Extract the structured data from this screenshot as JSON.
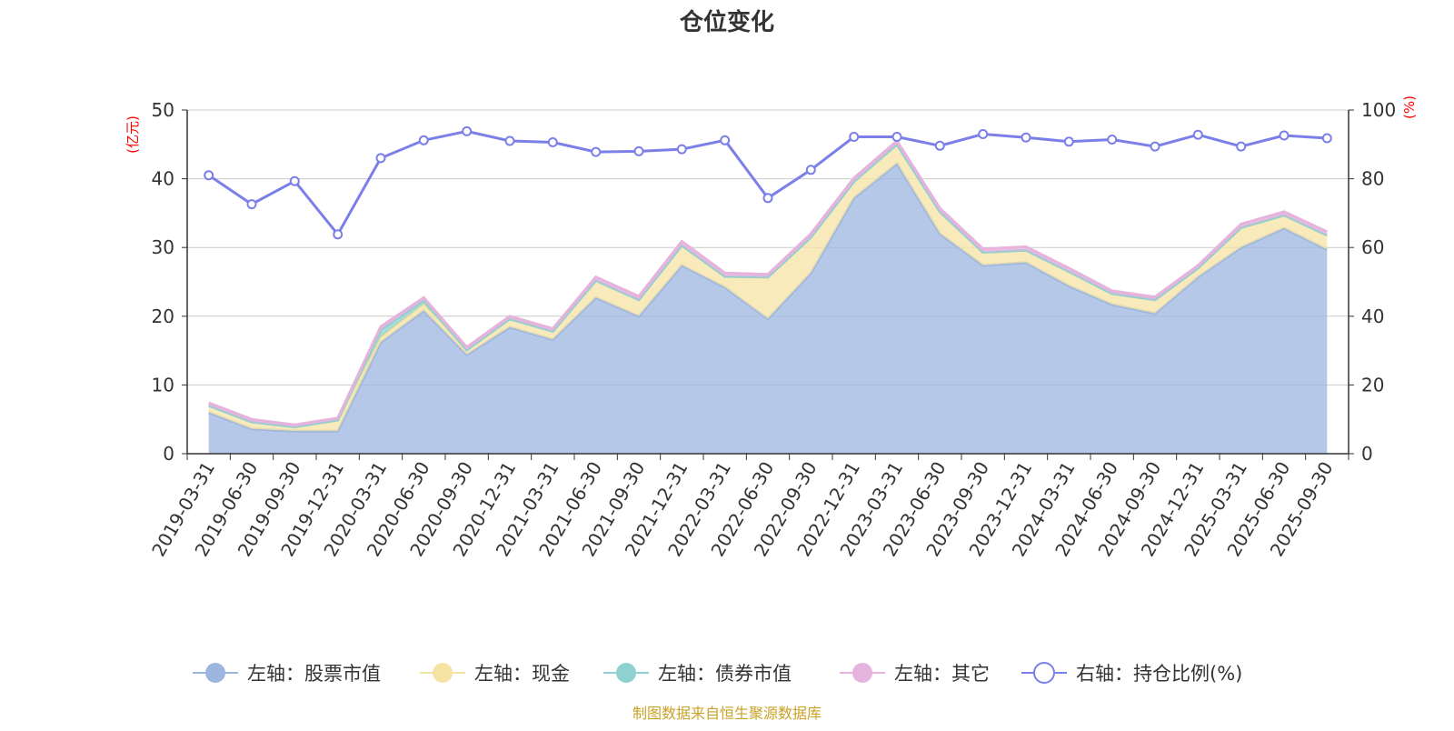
{
  "chart_data": {
    "type": "area",
    "title": "仓位变化",
    "left_axis_unit": "(亿元)",
    "right_axis_unit": "(%)",
    "ylim_left": [
      0,
      50
    ],
    "yticks_left": [
      0,
      10,
      20,
      30,
      40,
      50
    ],
    "ylim_right": [
      0,
      100
    ],
    "yticks_right": [
      0,
      20,
      40,
      60,
      80,
      100
    ],
    "grid": true,
    "legend_position": "bottom",
    "categories": [
      "2019-03-31",
      "2019-06-30",
      "2019-09-30",
      "2019-12-31",
      "2020-03-31",
      "2020-06-30",
      "2020-09-30",
      "2020-12-31",
      "2021-03-31",
      "2021-06-30",
      "2021-09-30",
      "2021-12-31",
      "2022-03-31",
      "2022-06-30",
      "2022-09-30",
      "2022-12-31",
      "2023-03-31",
      "2023-06-30",
      "2023-09-30",
      "2023-12-31",
      "2024-03-31",
      "2024-06-30",
      "2024-09-30",
      "2024-12-31",
      "2025-03-31",
      "2025-06-30",
      "2025-09-30"
    ],
    "series": [
      {
        "name": "左轴：股票市值",
        "axis": "left",
        "kind": "stacked-area",
        "color": "#9cb6e0",
        "values": [
          6.0,
          3.6,
          3.3,
          3.3,
          16.2,
          20.8,
          14.4,
          18.4,
          16.6,
          22.7,
          20.0,
          27.4,
          24.2,
          19.6,
          26.3,
          37.2,
          42.2,
          32.0,
          27.4,
          27.8,
          24.4,
          21.7,
          20.4,
          25.7,
          30.0,
          32.8,
          29.7
        ]
      },
      {
        "name": "左轴：现金",
        "axis": "left",
        "kind": "stacked-area",
        "color": "#f5e3a3",
        "values": [
          1.0,
          1.0,
          0.6,
          1.6,
          0.8,
          1.0,
          0.7,
          1.2,
          1.2,
          2.5,
          2.4,
          2.9,
          1.6,
          6.1,
          5.2,
          2.4,
          2.8,
          3.2,
          1.9,
          1.8,
          2.1,
          1.6,
          2.0,
          1.3,
          2.9,
          1.9,
          2.1
        ]
      },
      {
        "name": "左轴：债券市值",
        "axis": "left",
        "kind": "stacked-area",
        "color": "#8ed1cf",
        "values": [
          0,
          0,
          0,
          0,
          1.0,
          0.5,
          0,
          0,
          0,
          0,
          0,
          0,
          0,
          0,
          0,
          0,
          0,
          0,
          0,
          0,
          0,
          0,
          0,
          0,
          0,
          0,
          0
        ]
      },
      {
        "name": "左轴：其它",
        "axis": "left",
        "kind": "stacked-area",
        "color": "#e6b3dd",
        "values": [
          0.4,
          0.4,
          0.3,
          0.3,
          0.5,
          0.4,
          0.4,
          0.4,
          0.4,
          0.5,
          0.5,
          0.6,
          0.5,
          0.4,
          0.5,
          0.5,
          0.5,
          0.5,
          0.5,
          0.5,
          0.5,
          0.4,
          0.4,
          0.4,
          0.5,
          0.5,
          0.5
        ]
      },
      {
        "name": "右轴：持仓比例(%)",
        "axis": "right",
        "kind": "line",
        "color": "#7b7fe8",
        "values": [
          81.0,
          72.6,
          79.3,
          63.8,
          86.0,
          91.2,
          93.8,
          91.0,
          90.6,
          87.8,
          88.0,
          88.6,
          91.2,
          74.4,
          82.6,
          92.2,
          92.2,
          89.6,
          93.0,
          92.0,
          90.8,
          91.4,
          89.4,
          92.8,
          89.4,
          92.6,
          91.8
        ]
      }
    ]
  },
  "source_note": "制图数据来自恒生聚源数据库"
}
